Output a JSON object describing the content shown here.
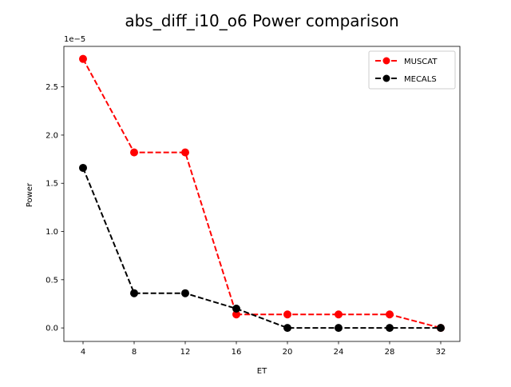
{
  "chart_data": {
    "type": "line",
    "title": "abs_diff_i10_o6 Power comparison",
    "xlabel": "ET",
    "ylabel": "Power",
    "x": [
      4,
      8,
      12,
      16,
      20,
      24,
      28,
      32
    ],
    "x_ticks": [
      "4",
      "8",
      "12",
      "16",
      "20",
      "24",
      "28",
      "32"
    ],
    "y_ticks": [
      {
        "value": 0.0,
        "label": "0.0"
      },
      {
        "value": 0.5,
        "label": "0.5"
      },
      {
        "value": 1.0,
        "label": "1.0"
      },
      {
        "value": 1.5,
        "label": "1.5"
      },
      {
        "value": 2.0,
        "label": "2.0"
      },
      {
        "value": 2.5,
        "label": "2.5"
      }
    ],
    "y_offset_label": "1e−5",
    "y_scale_note": "values in units of 1e-5",
    "xlim": [
      2.5,
      33.5
    ],
    "ylim": [
      -0.14,
      2.92
    ],
    "grid": false,
    "legend_position": "upper right",
    "series": [
      {
        "name": "MUSCAT",
        "color": "#ff0000",
        "linestyle": "dashed",
        "marker": "circle",
        "values": [
          2.79,
          1.82,
          1.82,
          0.14,
          0.14,
          0.14,
          0.14,
          0.0
        ]
      },
      {
        "name": "MECALS",
        "color": "#000000",
        "linestyle": "dashed",
        "marker": "circle",
        "values": [
          1.66,
          0.36,
          0.36,
          0.2,
          0.0,
          0.0,
          0.0,
          0.0
        ]
      }
    ]
  }
}
